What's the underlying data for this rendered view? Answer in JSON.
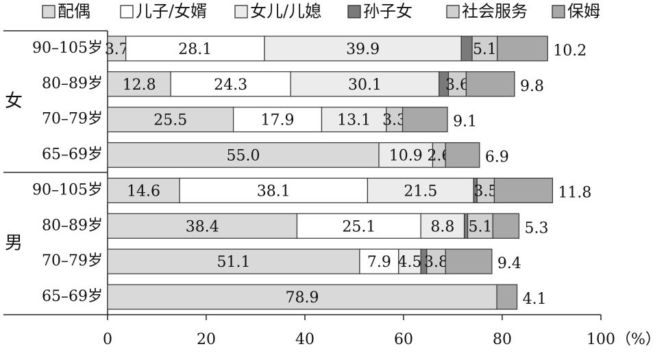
{
  "chart_data": {
    "type": "stacked-bar-horizontal",
    "groups": [
      "女",
      "男"
    ],
    "categories": [
      "90–105岁",
      "80–89岁",
      "70–79岁",
      "65–69岁",
      "90–105岁",
      "80–89岁",
      "70–79岁",
      "65–69岁"
    ],
    "series": [
      {
        "name": "配偶",
        "color": "#d9d9d9",
        "values": [
          3.7,
          12.8,
          25.5,
          55.0,
          14.6,
          38.4,
          51.1,
          78.9
        ],
        "value_labels": [
          "3.7",
          "12.8",
          "25.5",
          "55.0",
          "14.6",
          "38.4",
          "51.1",
          "78.9"
        ]
      },
      {
        "name": "儿子/女婿",
        "color": "#ffffff",
        "values": [
          28.1,
          24.3,
          17.9,
          null,
          38.1,
          25.1,
          7.9,
          null
        ]
      },
      {
        "name": "女儿/儿媳",
        "color": "#ececec",
        "values": [
          39.9,
          30.1,
          13.1,
          10.9,
          21.5,
          8.8,
          4.5,
          null
        ]
      },
      {
        "name": "孙子女",
        "color": "#7a7a7a",
        "values": [
          2.2,
          1.9,
          null,
          null,
          0.7,
          0.7,
          1.2,
          null
        ],
        "labels": false
      },
      {
        "name": "社会服务",
        "color": "#d0d0d0",
        "values": [
          5.1,
          3.6,
          3.3,
          2.6,
          3.5,
          5.1,
          3.8,
          null
        ]
      },
      {
        "name": "保姆",
        "color": "#a8a8a8",
        "values": [
          10.2,
          9.8,
          9.1,
          6.9,
          11.8,
          5.3,
          9.4,
          4.1
        ]
      }
    ],
    "xlim": [
      0,
      100
    ],
    "xticks": [
      0,
      20,
      40,
      60,
      80,
      100
    ],
    "xunit": "（%）"
  }
}
